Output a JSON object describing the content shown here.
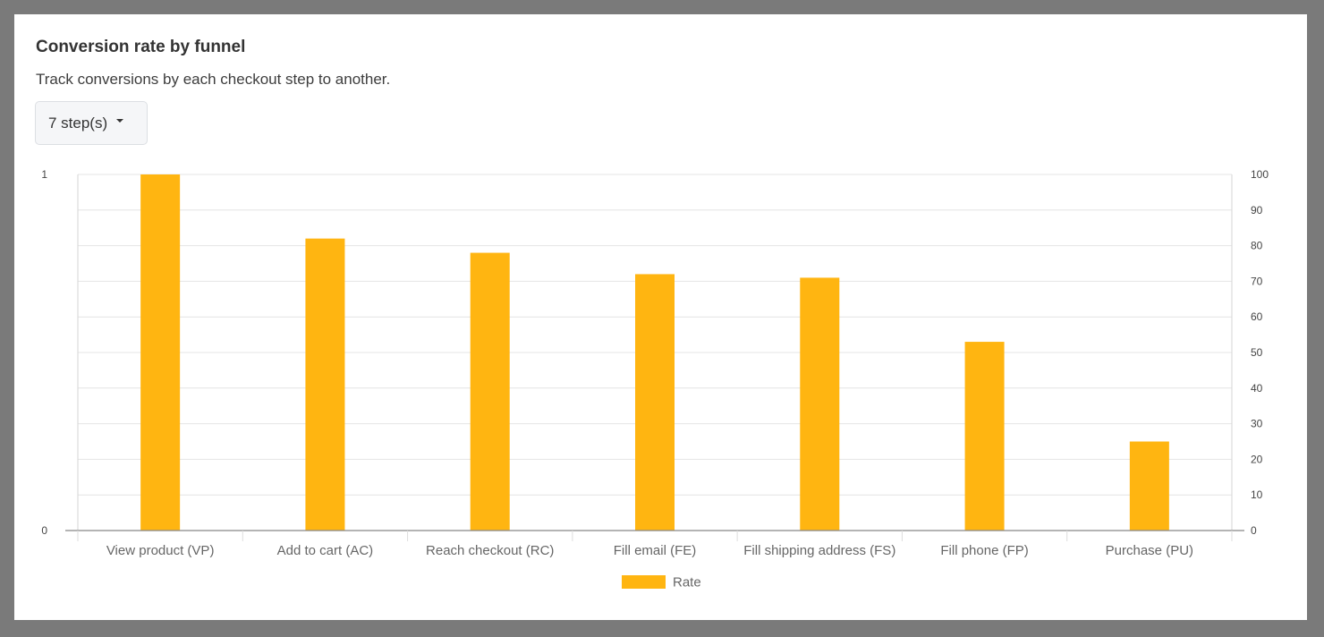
{
  "card": {
    "title": "Conversion rate by funnel",
    "subtitle": "Track conversions by each checkout step to another."
  },
  "steps_dropdown": {
    "selected": "7 step(s)"
  },
  "chart_data": {
    "type": "bar",
    "categories": [
      "View product (VP)",
      "Add to cart (AC)",
      "Reach checkout (RC)",
      "Fill email (FE)",
      "Fill shipping address (FS)",
      "Fill phone (FP)",
      "Purchase (PU)"
    ],
    "series": [
      {
        "name": "Rate",
        "values": [
          100,
          82,
          78,
          72,
          71,
          53,
          25
        ]
      }
    ],
    "left_axis": {
      "ylim": [
        0,
        1
      ],
      "ticks": [
        "0",
        "1"
      ]
    },
    "right_axis": {
      "ylim": [
        0,
        100
      ],
      "ticks": [
        "0",
        "10",
        "20",
        "30",
        "40",
        "50",
        "60",
        "70",
        "80",
        "90",
        "100"
      ]
    },
    "grid": true,
    "legend_position": "bottom-center",
    "colors": {
      "bar": "#ffb511",
      "grid": "#e4e4e4",
      "axis": "#888888"
    }
  }
}
